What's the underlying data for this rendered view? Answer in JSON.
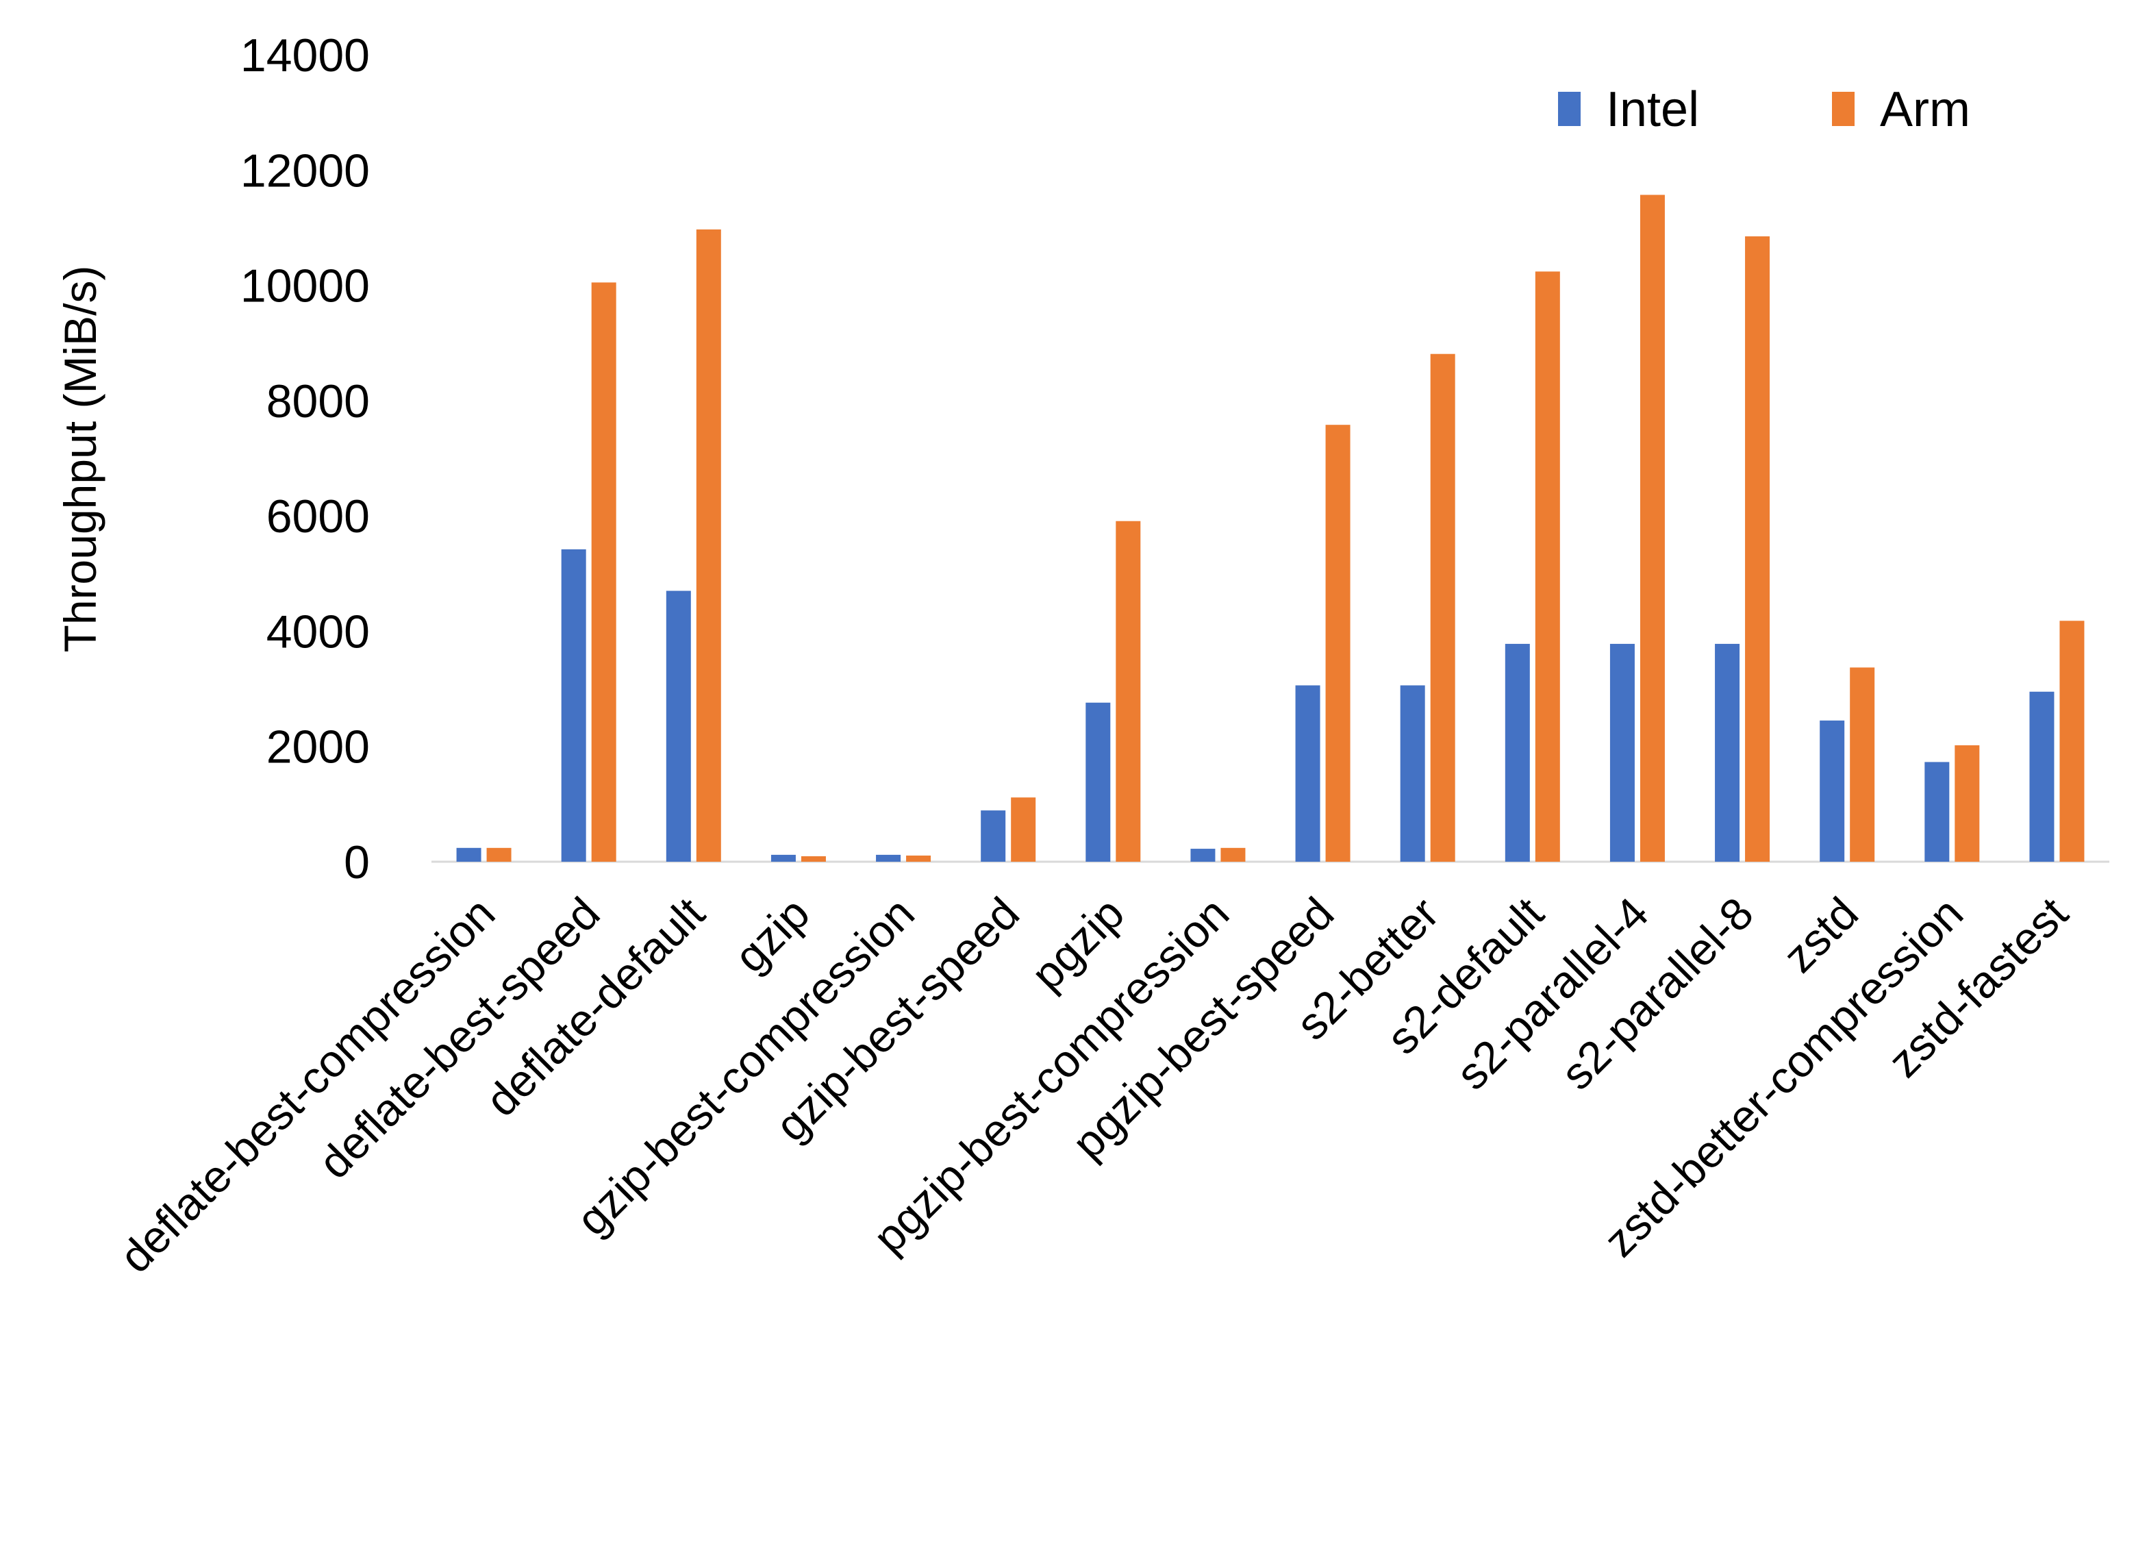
{
  "chart_data": {
    "type": "bar",
    "title": "",
    "xlabel": "",
    "ylabel": "Throughput (MiB/s)",
    "ylim": [
      0,
      14000
    ],
    "yticks": [
      "0",
      "2000",
      "4000",
      "6000",
      "8000",
      "10000",
      "12000",
      "14000"
    ],
    "grid": false,
    "legend_position": "top-right",
    "categories": [
      "deflate-best-compression",
      "deflate-best-speed",
      "deflate-default",
      "gzip",
      "gzip-best-compression",
      "gzip-best-speed",
      "pgzip",
      "pgzip-best-compression",
      "pgzip-best-speed",
      "s2-better",
      "s2-default",
      "s2-parallel-4",
      "s2-parallel-8",
      "zstd",
      "zstd-better-compression",
      "zstd-fastest"
    ],
    "series": [
      {
        "name": "Intel",
        "color": "#4472C4",
        "values": [
          240,
          5420,
          4700,
          120,
          120,
          890,
          2760,
          225,
          3060,
          3060,
          3780,
          3780,
          3780,
          2450,
          1730,
          2950
        ]
      },
      {
        "name": "Arm",
        "color": "#ED7D31",
        "values": [
          240,
          10050,
          10970,
          95,
          107,
          1115,
          5910,
          240,
          7580,
          8810,
          10240,
          11570,
          10850,
          3370,
          2020,
          4180
        ]
      }
    ]
  }
}
